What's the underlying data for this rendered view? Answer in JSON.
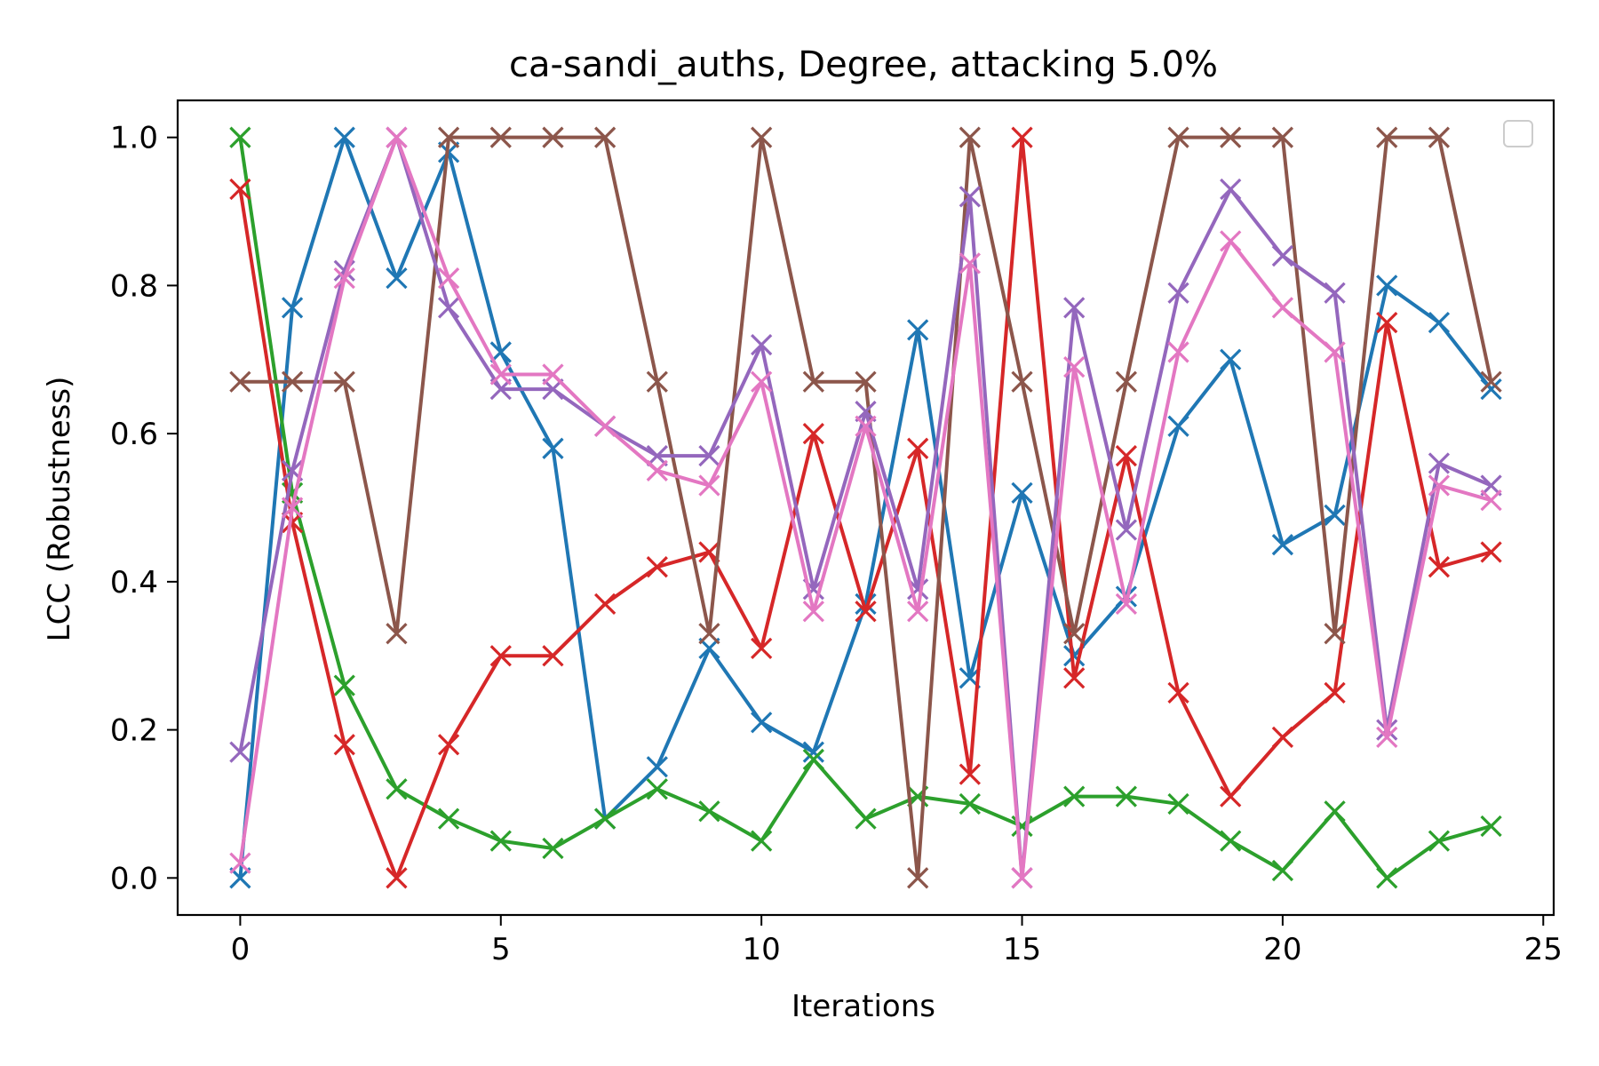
{
  "chart_data": {
    "type": "line",
    "title": "ca-sandi_auths, Degree, attacking 5.0%",
    "xlabel": "Iterations",
    "ylabel": "LCC (Robustness)",
    "xlim": [
      -1.2,
      25.2
    ],
    "ylim": [
      -0.05,
      1.05
    ],
    "xticks": [
      0,
      5,
      10,
      15,
      20,
      25
    ],
    "yticks": [
      0.0,
      0.2,
      0.4,
      0.6,
      0.8,
      1.0
    ],
    "xtick_labels": [
      "0",
      "5",
      "10",
      "15",
      "20",
      "25"
    ],
    "ytick_labels": [
      "0.0",
      "0.2",
      "0.4",
      "0.6",
      "0.8",
      "1.0"
    ],
    "grid": false,
    "legend": {
      "placement": "top-right",
      "entries": []
    },
    "marker": "x",
    "x": [
      0,
      1,
      2,
      3,
      4,
      5,
      6,
      7,
      8,
      9,
      10,
      11,
      12,
      13,
      14,
      15,
      16,
      17,
      18,
      19,
      20,
      21,
      22,
      23,
      24
    ],
    "series": [
      {
        "color": "#1f77b4",
        "values": [
          0.0,
          0.77,
          1.0,
          0.81,
          0.98,
          0.71,
          0.58,
          0.08,
          0.15,
          0.31,
          0.21,
          0.17,
          0.37,
          0.74,
          0.27,
          0.52,
          0.3,
          0.38,
          0.61,
          0.7,
          0.45,
          0.49,
          0.8,
          0.75,
          0.66
        ]
      },
      {
        "color": "#2ca02c",
        "values": [
          1.0,
          0.52,
          0.26,
          0.12,
          0.08,
          0.05,
          0.04,
          0.08,
          0.12,
          0.09,
          0.05,
          0.16,
          0.08,
          0.11,
          0.1,
          0.07,
          0.11,
          0.11,
          0.1,
          0.05,
          0.01,
          0.09,
          0.0,
          0.05,
          0.07
        ]
      },
      {
        "color": "#d62728",
        "values": [
          0.93,
          0.48,
          0.18,
          0.0,
          0.18,
          0.3,
          0.3,
          0.37,
          0.42,
          0.44,
          0.31,
          0.6,
          0.36,
          0.58,
          0.14,
          1.0,
          0.27,
          0.57,
          0.25,
          0.11,
          0.19,
          0.25,
          0.75,
          0.42,
          0.44
        ]
      },
      {
        "color": "#8c564b",
        "values": [
          0.67,
          0.67,
          0.67,
          0.33,
          1.0,
          1.0,
          1.0,
          1.0,
          0.67,
          0.33,
          1.0,
          0.67,
          0.67,
          0.0,
          1.0,
          0.67,
          0.33,
          0.67,
          1.0,
          1.0,
          1.0,
          0.33,
          1.0,
          1.0,
          0.67
        ]
      },
      {
        "color": "#9467bd",
        "values": [
          0.17,
          0.55,
          0.82,
          1.0,
          0.77,
          0.66,
          0.66,
          0.61,
          0.57,
          0.57,
          0.72,
          0.39,
          0.63,
          0.39,
          0.92,
          0.0,
          0.77,
          0.47,
          0.79,
          0.93,
          0.84,
          0.79,
          0.2,
          0.56,
          0.53
        ]
      },
      {
        "color": "#e377c2",
        "values": [
          0.02,
          0.5,
          0.81,
          1.0,
          0.81,
          0.68,
          0.68,
          0.61,
          0.55,
          0.53,
          0.67,
          0.36,
          0.61,
          0.36,
          0.83,
          0.0,
          0.69,
          0.37,
          0.71,
          0.86,
          0.77,
          0.71,
          0.19,
          0.53,
          0.51
        ]
      }
    ]
  }
}
